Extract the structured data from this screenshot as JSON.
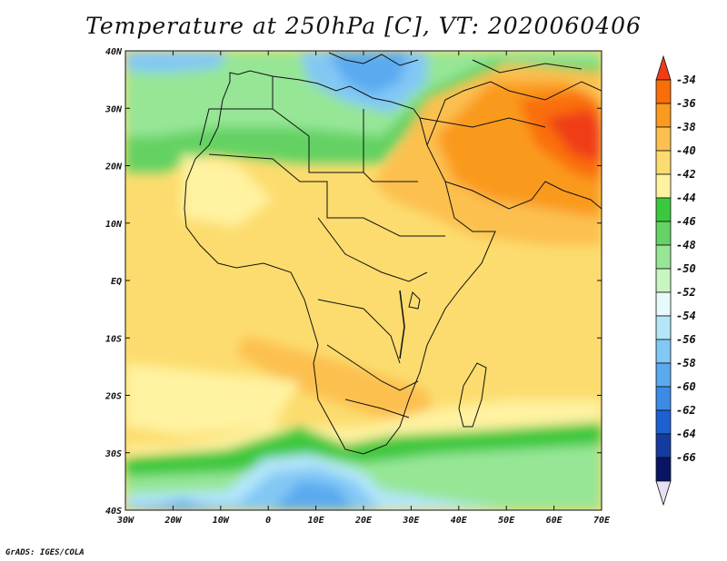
{
  "title": "Temperature at 250hPa [C], VT: 2020060406",
  "credit": "GrADS: IGES/COLA",
  "lon_labels": [
    "30W",
    "20W",
    "10W",
    "0",
    "10E",
    "20E",
    "30E",
    "40E",
    "50E",
    "60E",
    "70E"
  ],
  "lat_labels": [
    "40N",
    "30N",
    "20N",
    "10N",
    "EQ",
    "10S",
    "20S",
    "30S",
    "40S"
  ],
  "legend": {
    "levels": [
      "-34",
      "-36",
      "-38",
      "-40",
      "-42",
      "-44",
      "-46",
      "-48",
      "-50",
      "-52",
      "-54",
      "-56",
      "-58",
      "-60",
      "-62",
      "-64",
      "-66"
    ],
    "colors": [
      "#f03c14",
      "#fa6e0a",
      "#fa9a1e",
      "#fcc050",
      "#fcdc6e",
      "#fff2a0",
      "#3cc83c",
      "#64d264",
      "#96e696",
      "#c8f5c0",
      "#e6fafa",
      "#b4e6fa",
      "#82c8f5",
      "#5aaaf0",
      "#3c8ce6",
      "#1e5fd2",
      "#143ca0",
      "#0a1464",
      "#e6e0f5"
    ]
  }
}
